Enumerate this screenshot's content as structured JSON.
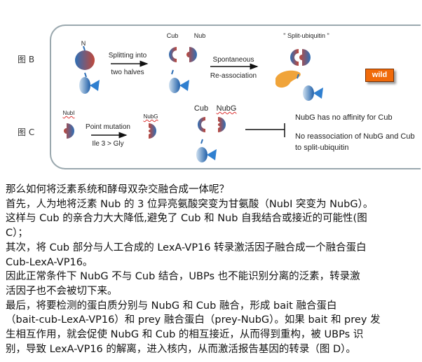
{
  "figure": {
    "label_b": "图 B",
    "label_c": "图 C",
    "b": {
      "n_label": "N",
      "split_top": "Splitting into",
      "split_bottom": "two halves",
      "cub": "Cub",
      "nub": "Nub",
      "spont_top": "Spontaneous",
      "spont_bottom": "Re-association",
      "split_ubiquitin": "\" Split-ubiquitin \"",
      "wild": "wild"
    },
    "c": {
      "nubi": "NubI",
      "mut_top": "Point mutation",
      "mut_bottom": "Ile 3 > Gly",
      "nubg": "NubG",
      "cub": "Cub",
      "nubg2": "NubG",
      "note1": "NubG has no affinity for Cub",
      "note2": "No reassociation of NubG and Cub",
      "note3": "to split-ubiquitin"
    },
    "colors": {
      "blue": "#2f6fb6",
      "red": "#c0473a",
      "orange": "#f0a43a",
      "wild": "#f06a0a"
    }
  },
  "text_lines": [
    "那么如何将泛素系统和酵母双杂交融合成一体呢？",
    "首先，人为地将泛素 Nub 的 3 位异亮氨酸突变为甘氨酸（NubI 突变为 NubG）。",
    "这样与 Cub 的亲合力大大降低,避免了 Cub 和 Nub 自我结合或接近的可能性(图",
    "C）；",
    "其次，将 Cub 部分与人工合成的 LexA-VP16 转录激活因子融合成一个融合蛋白",
    "Cub-LexA-VP16。",
    "因此正常条件下 NubG 不与 Cub 结合，UBPs 也不能识别分离的泛素，转录激",
    "活因子也不会被切下来。",
    "最后，将要检测的蛋白质分别与 NubG 和 Cub 融合，形成 bait 融合蛋白",
    "（bait-cub-LexA-VP16）和 prey 融合蛋白（prey-NubG）。如果 bait 和 prey 发",
    "生相互作用，就会促使 NubG 和 Cub 的相互接近，从而得到重构，被 UBPs 识",
    "别，导致 LexA-VP16 的解离，进入核内，从而激活报告基因的转录（图 D）。"
  ]
}
